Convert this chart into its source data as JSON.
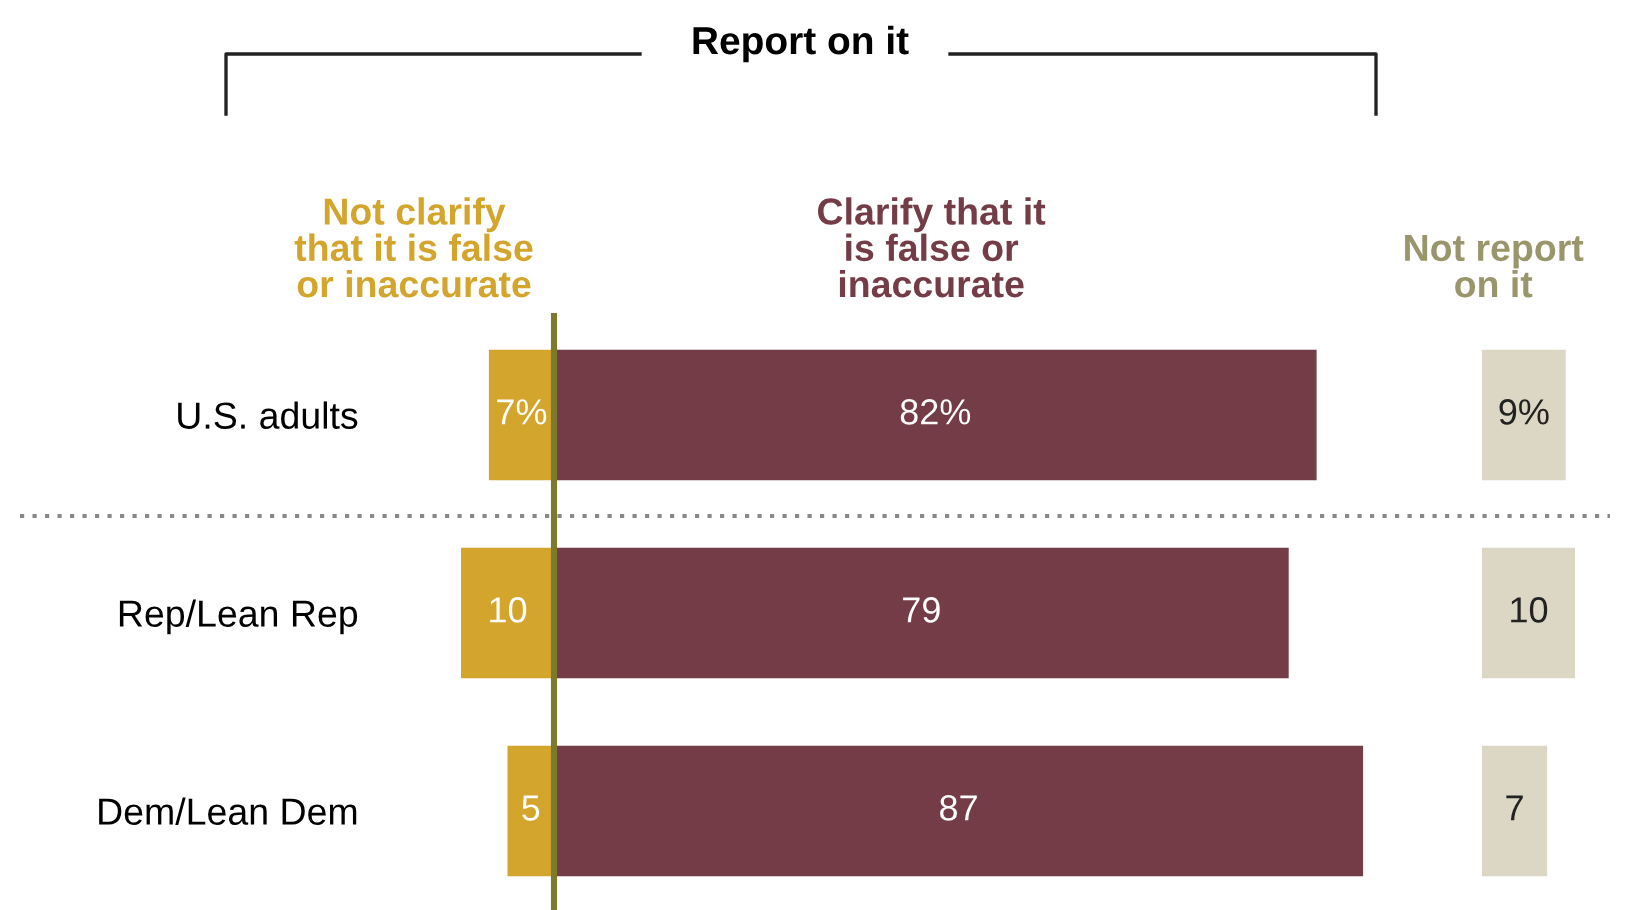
{
  "chart_data": [
    {
      "type": "bar",
      "orientation": "horizontal",
      "categories": [
        "U.S. adults",
        "Rep/Lean Rep",
        "Dem/Lean Dem"
      ],
      "series": [
        {
          "name": "Not clarify\nthat it is false\nor inaccurate",
          "color": "#d4a52c",
          "values": [
            7,
            10,
            5
          ],
          "value_labels": [
            "7%",
            "10",
            "5"
          ]
        }
      ]
    },
    {
      "type": "bar",
      "orientation": "horizontal",
      "title": "Report on it",
      "categories": [
        null,
        null,
        null
      ],
      "ref_lines": [
        {
          "axis": "x",
          "value": 0,
          "color": "#7d7a2e"
        }
      ],
      "series": [
        {
          "name": "Clarify that it\nis false or\ninaccurate",
          "color": "#733c46",
          "values": [
            82,
            79,
            87
          ],
          "value_labels": [
            "82%",
            "79",
            "87"
          ]
        }
      ]
    },
    {
      "type": "bar",
      "orientation": "horizontal",
      "categories": [
        null,
        null,
        null
      ],
      "series": [
        {
          "name": "Not report\non it",
          "color": "#dcd7c4",
          "values": [
            9,
            10,
            7
          ],
          "value_labels": [
            "9%",
            "10",
            "7"
          ]
        }
      ]
    }
  ]
}
